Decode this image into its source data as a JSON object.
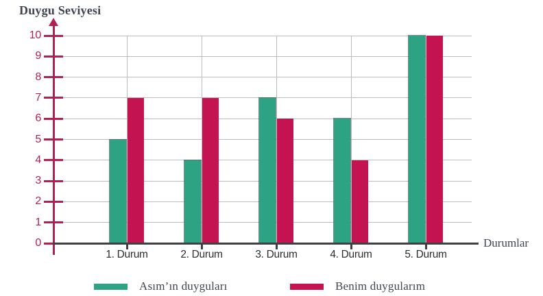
{
  "chart_data": {
    "type": "bar",
    "title": "Duygu Seviyesi",
    "xlabel": "Durumlar",
    "ylabel": "Duygu Seviyesi",
    "categories": [
      "1. Durum",
      "2. Durum",
      "3. Durum",
      "4. Durum",
      "5. Durum"
    ],
    "series": [
      {
        "name": "Asım’ın duyguları",
        "color": "#2da384",
        "values": [
          5,
          4,
          7,
          6,
          10
        ]
      },
      {
        "name": "Benim duygularım",
        "color": "#c31350",
        "values": [
          7,
          7,
          6,
          4,
          10
        ]
      }
    ],
    "ylim": [
      0,
      10
    ],
    "ytick_step": 1,
    "grid": true,
    "legend_position": "bottom"
  },
  "colors": {
    "axis_accent": "#b22053",
    "gridline": "#bcbcbc",
    "baseline": "#3f3f3f",
    "title_text": "#3e4450",
    "category_text": "#2d2d2d"
  }
}
